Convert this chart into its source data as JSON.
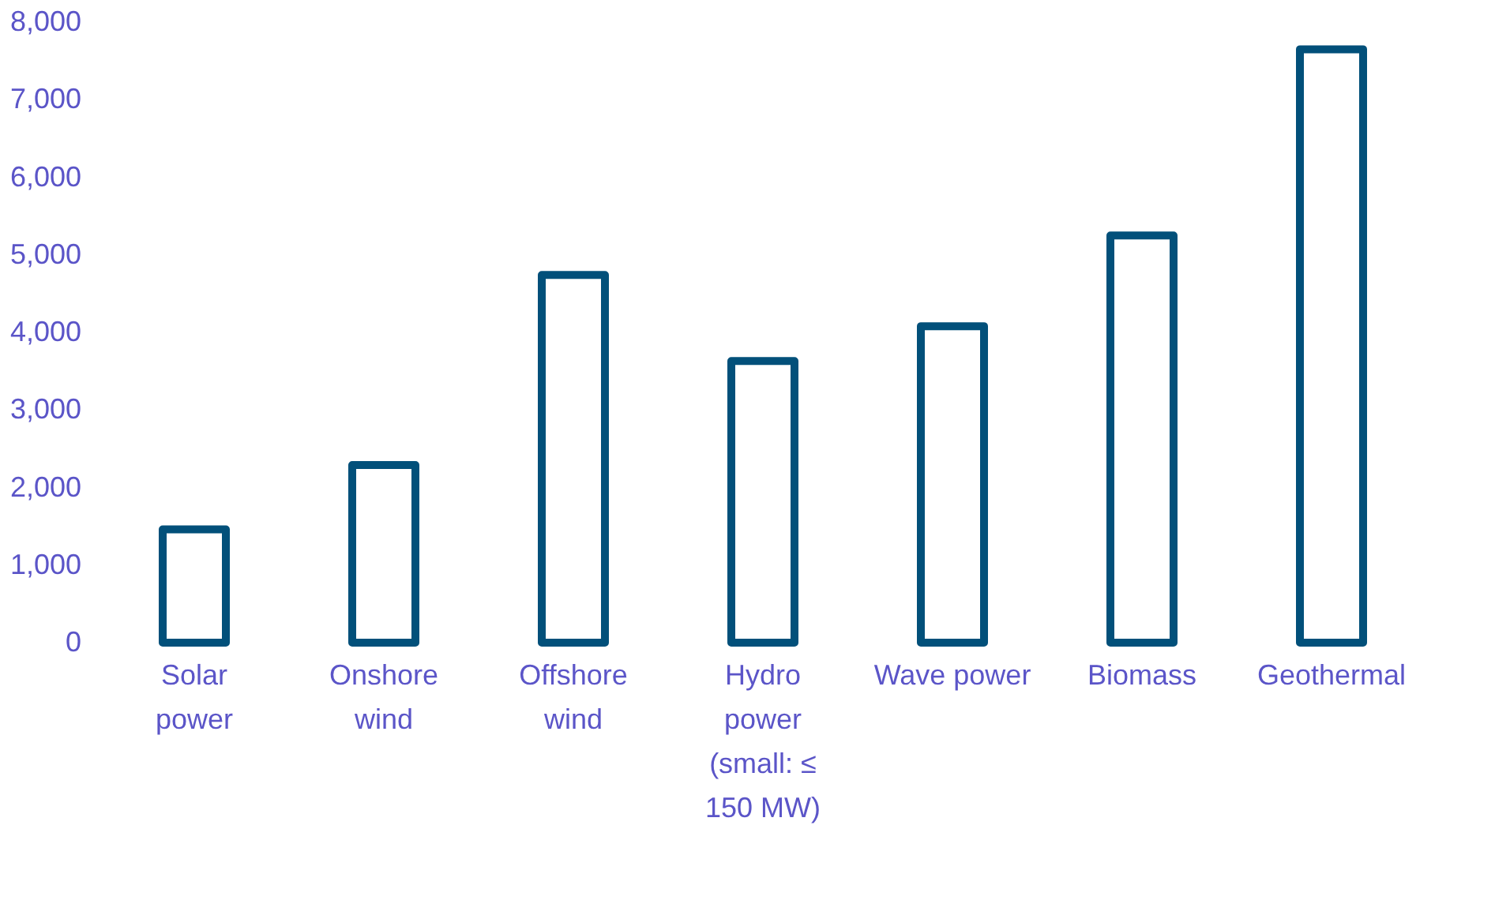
{
  "chart_data": {
    "type": "bar",
    "categories": [
      "Solar power",
      "Onshore wind",
      "Offshore wind",
      "Hydro power (small: ≤ 150 MW)",
      "Wave power",
      "Biomass",
      "Geothermal"
    ],
    "values": [
      1460,
      2290,
      4740,
      3630,
      4080,
      5250,
      7650
    ],
    "color": "#02507a",
    "ylim": [
      0,
      8000
    ],
    "yticks": [
      0,
      {
        "value": 1000,
        "label": "1,000"
      },
      {
        "value": 2000,
        "label": "2,000"
      },
      {
        "value": 3000,
        "label": "3,000"
      },
      {
        "value": 4000,
        "label": "4,000"
      },
      {
        "value": 5000,
        "label": "5,000"
      },
      {
        "value": 6000,
        "label": "6,000"
      },
      {
        "value": 7000,
        "label": "7,000"
      },
      {
        "value": 8000,
        "label": "8,000"
      }
    ],
    "grid": false
  }
}
